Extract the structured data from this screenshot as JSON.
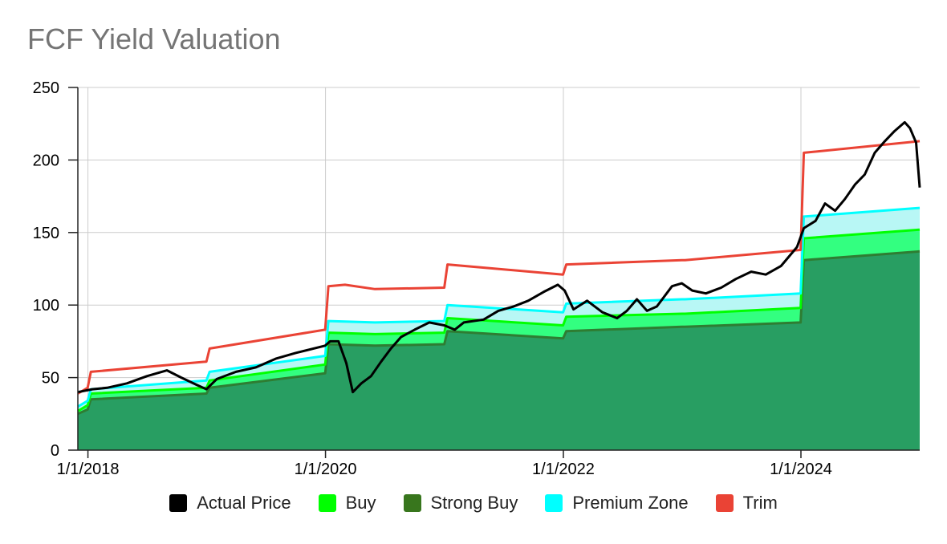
{
  "chart_data": {
    "type": "area",
    "title": "FCF Yield Valuation",
    "xlabel": "",
    "ylabel": "",
    "x_range": [
      "2017-12-01",
      "2024-12-31"
    ],
    "ylim": [
      0,
      250
    ],
    "y_ticks": [
      0,
      50,
      100,
      150,
      200,
      250
    ],
    "x_ticks": [
      "1/1/2018",
      "1/1/2020",
      "1/1/2022",
      "1/1/2024"
    ],
    "grid": true,
    "legend_position": "bottom",
    "series": [
      {
        "name": "Strong Buy",
        "color": "#2e7d32",
        "fill": "#289e62",
        "points": [
          [
            "2017-12-01",
            25
          ],
          [
            "2017-12-31",
            28
          ],
          [
            "2018-01-10",
            35
          ],
          [
            "2018-12-31",
            39
          ],
          [
            "2019-01-10",
            43
          ],
          [
            "2019-12-31",
            53
          ],
          [
            "2020-01-10",
            73
          ],
          [
            "2020-06-01",
            72
          ],
          [
            "2020-12-31",
            73
          ],
          [
            "2021-01-10",
            82
          ],
          [
            "2021-12-31",
            77
          ],
          [
            "2022-01-10",
            82
          ],
          [
            "2022-12-31",
            85
          ],
          [
            "2023-01-10",
            85
          ],
          [
            "2023-12-31",
            88
          ],
          [
            "2024-01-10",
            131
          ],
          [
            "2024-12-31",
            137
          ]
        ]
      },
      {
        "name": "Buy",
        "color": "#00ff00",
        "fill": "#33ff80",
        "points": [
          [
            "2017-12-01",
            27
          ],
          [
            "2017-12-31",
            31
          ],
          [
            "2018-01-10",
            39
          ],
          [
            "2018-12-31",
            43
          ],
          [
            "2019-01-10",
            48
          ],
          [
            "2019-12-31",
            59
          ],
          [
            "2020-01-10",
            81
          ],
          [
            "2020-06-01",
            80
          ],
          [
            "2020-12-31",
            81
          ],
          [
            "2021-01-10",
            91
          ],
          [
            "2021-12-31",
            86
          ],
          [
            "2022-01-10",
            92
          ],
          [
            "2022-12-31",
            94
          ],
          [
            "2023-01-10",
            94
          ],
          [
            "2023-12-31",
            98
          ],
          [
            "2024-01-10",
            146
          ],
          [
            "2024-12-31",
            152
          ]
        ]
      },
      {
        "name": "Premium Zone",
        "color": "#00ffff",
        "fill": "#b8f7f5",
        "points": [
          [
            "2017-12-01",
            30
          ],
          [
            "2017-12-31",
            34
          ],
          [
            "2018-01-10",
            42
          ],
          [
            "2018-12-31",
            48
          ],
          [
            "2019-01-10",
            54
          ],
          [
            "2019-12-31",
            65
          ],
          [
            "2020-01-10",
            89
          ],
          [
            "2020-06-01",
            88
          ],
          [
            "2020-12-31",
            89
          ],
          [
            "2021-01-10",
            100
          ],
          [
            "2021-12-31",
            95
          ],
          [
            "2022-01-10",
            101
          ],
          [
            "2022-12-31",
            104
          ],
          [
            "2023-01-10",
            104
          ],
          [
            "2023-12-31",
            108
          ],
          [
            "2024-01-10",
            161
          ],
          [
            "2024-12-31",
            167
          ]
        ]
      },
      {
        "name": "Trim",
        "color": "#ea4335",
        "points": [
          [
            "2017-12-01",
            39
          ],
          [
            "2017-12-31",
            43
          ],
          [
            "2018-01-10",
            54
          ],
          [
            "2018-12-31",
            61
          ],
          [
            "2019-01-10",
            70
          ],
          [
            "2019-12-31",
            83
          ],
          [
            "2020-01-10",
            113
          ],
          [
            "2020-03-01",
            114
          ],
          [
            "2020-06-01",
            111
          ],
          [
            "2020-12-31",
            112
          ],
          [
            "2021-01-10",
            128
          ],
          [
            "2021-12-31",
            121
          ],
          [
            "2022-01-10",
            128
          ],
          [
            "2022-12-31",
            131
          ],
          [
            "2023-01-10",
            131
          ],
          [
            "2023-12-31",
            138
          ],
          [
            "2024-01-10",
            205
          ],
          [
            "2024-12-31",
            213
          ]
        ]
      },
      {
        "name": "Actual Price",
        "color": "#000000",
        "points": [
          [
            "2017-12-01",
            40
          ],
          [
            "2018-01-15",
            42
          ],
          [
            "2018-03-01",
            43
          ],
          [
            "2018-05-01",
            46
          ],
          [
            "2018-07-01",
            51
          ],
          [
            "2018-09-01",
            55
          ],
          [
            "2018-10-15",
            50
          ],
          [
            "2018-12-01",
            45
          ],
          [
            "2018-12-31",
            42
          ],
          [
            "2019-02-01",
            49
          ],
          [
            "2019-04-01",
            54
          ],
          [
            "2019-06-01",
            57
          ],
          [
            "2019-08-01",
            63
          ],
          [
            "2019-10-01",
            67
          ],
          [
            "2019-12-31",
            72
          ],
          [
            "2020-01-15",
            75
          ],
          [
            "2020-02-10",
            75
          ],
          [
            "2020-03-05",
            60
          ],
          [
            "2020-03-25",
            40
          ],
          [
            "2020-04-20",
            46
          ],
          [
            "2020-05-20",
            51
          ],
          [
            "2020-06-20",
            61
          ],
          [
            "2020-07-20",
            70
          ],
          [
            "2020-08-20",
            78
          ],
          [
            "2020-10-01",
            83
          ],
          [
            "2020-11-15",
            88
          ],
          [
            "2020-12-31",
            86
          ],
          [
            "2021-02-01",
            83
          ],
          [
            "2021-03-01",
            88
          ],
          [
            "2021-05-01",
            90
          ],
          [
            "2021-06-15",
            96
          ],
          [
            "2021-08-01",
            99
          ],
          [
            "2021-09-15",
            103
          ],
          [
            "2021-11-01",
            109
          ],
          [
            "2021-12-15",
            114
          ],
          [
            "2022-01-05",
            110
          ],
          [
            "2022-02-01",
            97
          ],
          [
            "2022-03-15",
            103
          ],
          [
            "2022-05-01",
            95
          ],
          [
            "2022-06-15",
            91
          ],
          [
            "2022-07-15",
            96
          ],
          [
            "2022-08-15",
            104
          ],
          [
            "2022-09-15",
            96
          ],
          [
            "2022-10-15",
            99
          ],
          [
            "2022-12-01",
            113
          ],
          [
            "2022-12-31",
            115
          ],
          [
            "2023-02-01",
            110
          ],
          [
            "2023-03-15",
            108
          ],
          [
            "2023-05-01",
            112
          ],
          [
            "2023-06-15",
            118
          ],
          [
            "2023-08-01",
            123
          ],
          [
            "2023-09-15",
            121
          ],
          [
            "2023-11-01",
            127
          ],
          [
            "2023-12-20",
            140
          ],
          [
            "2024-01-10",
            153
          ],
          [
            "2024-02-15",
            158
          ],
          [
            "2024-03-15",
            170
          ],
          [
            "2024-04-15",
            165
          ],
          [
            "2024-05-15",
            173
          ],
          [
            "2024-06-15",
            183
          ],
          [
            "2024-07-15",
            190
          ],
          [
            "2024-08-15",
            205
          ],
          [
            "2024-09-15",
            213
          ],
          [
            "2024-10-15",
            220
          ],
          [
            "2024-11-15",
            226
          ],
          [
            "2024-12-01",
            222
          ],
          [
            "2024-12-20",
            212
          ],
          [
            "2024-12-31",
            181
          ]
        ]
      }
    ]
  },
  "legend": [
    {
      "label": "Actual Price",
      "color": "#000000"
    },
    {
      "label": "Buy",
      "color": "#00ff00"
    },
    {
      "label": "Strong Buy",
      "color": "#38761d"
    },
    {
      "label": "Premium Zone",
      "color": "#00ffff"
    },
    {
      "label": "Trim",
      "color": "#ea4335"
    }
  ]
}
